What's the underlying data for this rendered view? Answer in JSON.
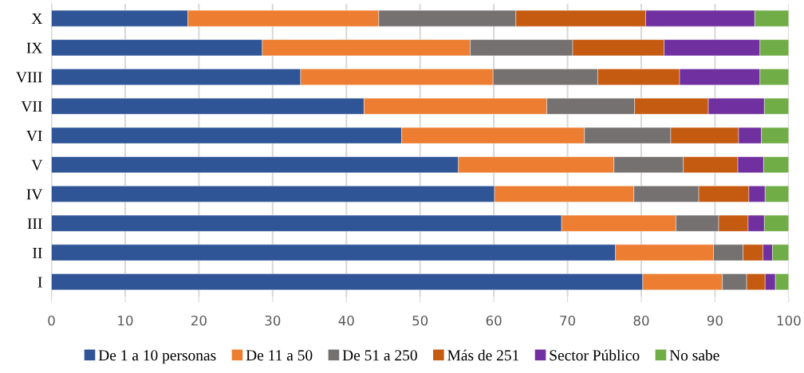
{
  "chart_data": {
    "type": "bar",
    "orientation": "horizontal",
    "stacked": true,
    "categories": [
      "X",
      "IX",
      "VIII",
      "VII",
      "VI",
      "V",
      "IV",
      "III",
      "II",
      "I"
    ],
    "series": [
      {
        "name": "De 1 a 10 personas",
        "color": "#2f5597",
        "values": [
          18.5,
          28.6,
          33.8,
          42.4,
          47.5,
          55.2,
          60.1,
          69.2,
          76.5,
          80.2
        ]
      },
      {
        "name": "De 11 a 50",
        "color": "#ed7d31",
        "values": [
          25.9,
          28.2,
          26.1,
          24.8,
          24.8,
          21.1,
          18.9,
          15.5,
          13.3,
          10.8
        ]
      },
      {
        "name": "De 51 a 250",
        "color": "#767171",
        "values": [
          18.6,
          13.9,
          14.2,
          11.9,
          11.7,
          9.4,
          8.8,
          5.8,
          4.0,
          3.3
        ]
      },
      {
        "name": "Más de 251",
        "color": "#c55a11",
        "values": [
          17.6,
          12.4,
          11.1,
          10.0,
          9.2,
          7.4,
          6.8,
          4.0,
          2.7,
          2.5
        ]
      },
      {
        "name": "Sector Público",
        "color": "#7030a0",
        "values": [
          14.8,
          13.0,
          10.9,
          7.6,
          3.1,
          3.5,
          2.2,
          2.2,
          1.3,
          1.4
        ]
      },
      {
        "name": "No sabe",
        "color": "#70ad47",
        "values": [
          4.6,
          3.9,
          3.9,
          3.3,
          3.7,
          3.4,
          3.2,
          3.3,
          2.2,
          1.8
        ]
      }
    ],
    "xlim": [
      0,
      100
    ],
    "xticks": [
      0,
      10,
      20,
      30,
      40,
      50,
      60,
      70,
      80,
      90,
      100
    ],
    "grid": "x",
    "legend": "bottom"
  }
}
